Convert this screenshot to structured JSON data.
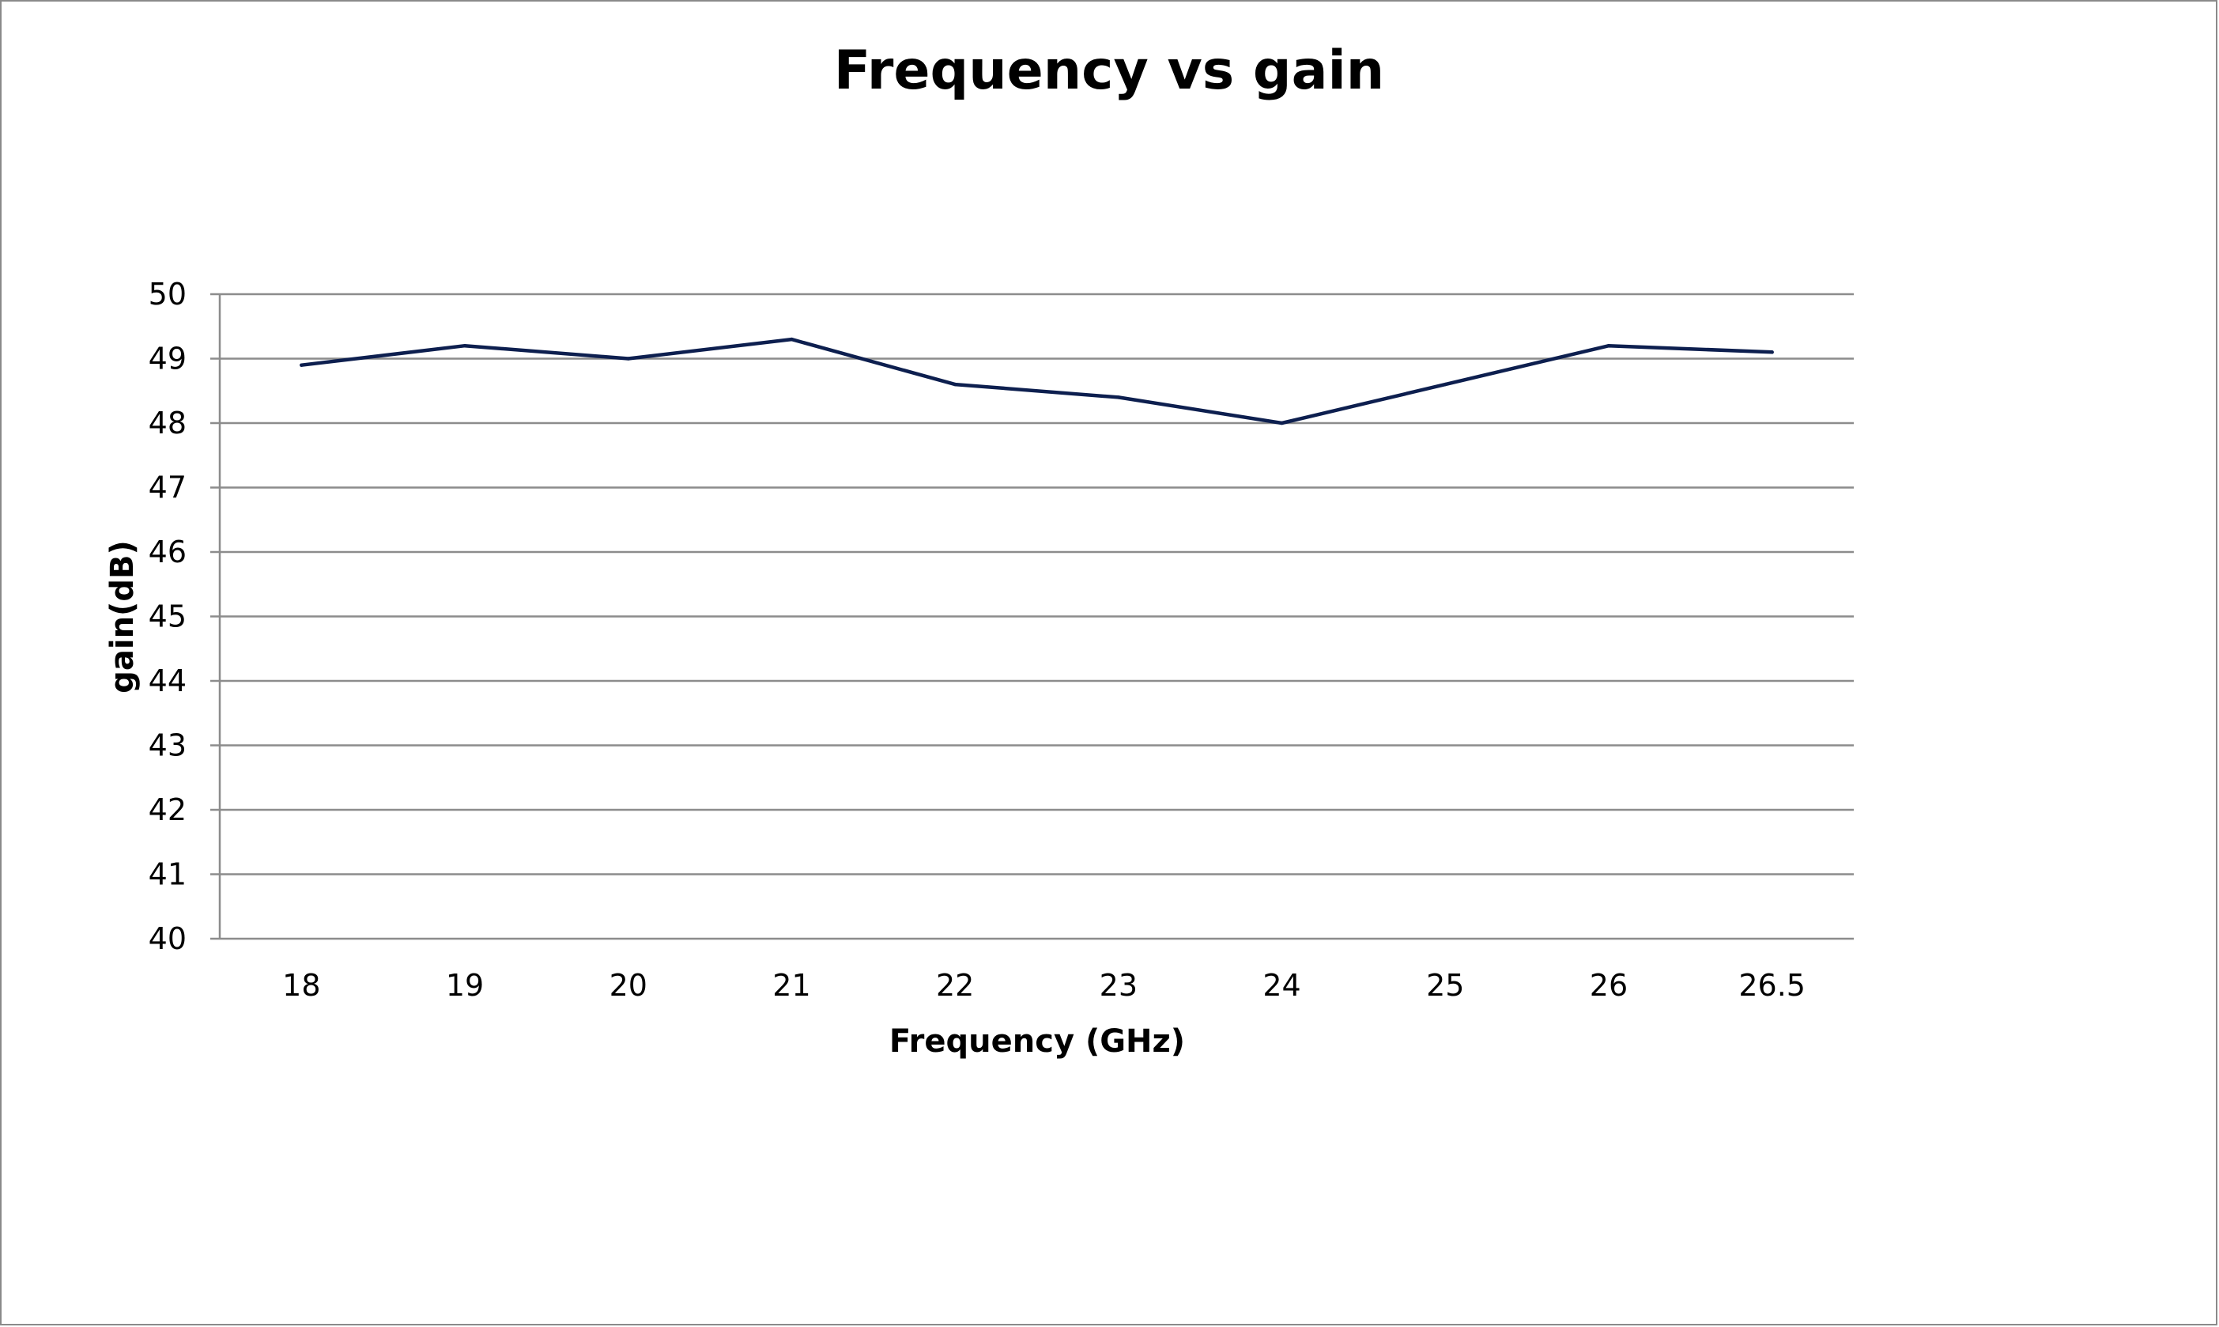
{
  "chart_data": {
    "type": "line",
    "title": "Frequency vs gain",
    "xlabel": "Frequency (GHz)",
    "ylabel": "gain(dB)",
    "categories": [
      "18",
      "19",
      "20",
      "21",
      "22",
      "23",
      "24",
      "25",
      "26",
      "26.5"
    ],
    "series": [
      {
        "values": [
          48.9,
          49.2,
          49.0,
          49.3,
          48.6,
          48.4,
          48.0,
          48.6,
          49.2,
          49.1
        ],
        "color": "#0d1f4f"
      }
    ],
    "ylim": [
      40,
      50
    ],
    "yticks": [
      "40",
      "41",
      "42",
      "43",
      "44",
      "45",
      "46",
      "47",
      "48",
      "49",
      "50"
    ],
    "grid": true,
    "gridColor": "#8c8c8c",
    "legend": "none"
  }
}
